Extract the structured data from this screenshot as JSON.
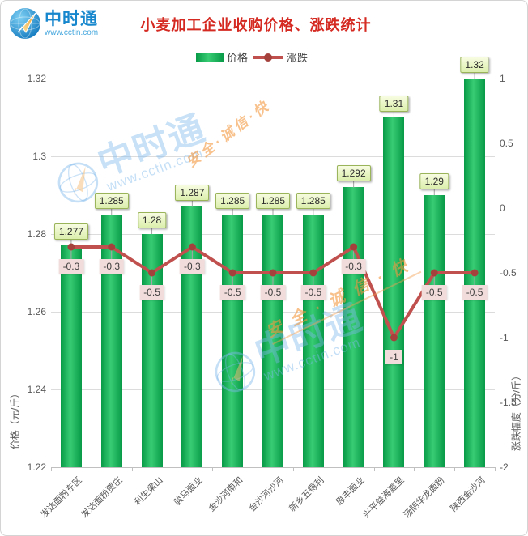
{
  "header": {
    "logo": {
      "brand": "中时通",
      "url": "www.cctin.com"
    },
    "title": "小麦加工企业收购价格、涨跌统计"
  },
  "legend": {
    "items": [
      {
        "label": "价格"
      },
      {
        "label": "涨跌"
      }
    ]
  },
  "watermark": {
    "brand": "中时通",
    "url": "www.cctin.com",
    "slogan": "安全·诚信·快"
  },
  "chart_data": {
    "type": "bar",
    "title": "小麦加工企业收购价格、涨跌统计",
    "categories": [
      "发达面粉东区",
      "发达面粉贾庄",
      "利生梁山",
      "骏马面业",
      "金沙河南和",
      "金沙河沙河",
      "新乡五得利",
      "思丰面业",
      "兴平益海嘉里",
      "汤阴华龙面粉",
      "陕西金沙河"
    ],
    "series": [
      {
        "name": "价格",
        "chart": "bar",
        "axis": "left",
        "values": [
          1.277,
          1.285,
          1.28,
          1.287,
          1.285,
          1.285,
          1.285,
          1.292,
          1.31,
          1.29,
          1.32
        ]
      },
      {
        "name": "涨跌",
        "chart": "line",
        "axis": "right",
        "values": [
          -0.3,
          -0.3,
          -0.5,
          -0.3,
          -0.5,
          -0.5,
          -0.5,
          -0.3,
          -1,
          -0.5,
          -0.5
        ]
      }
    ],
    "left_axis": {
      "label": "价格（元/斤）",
      "min": 1.22,
      "max": 1.32,
      "tick_labels": [
        "1.32",
        "1.3",
        "1.28",
        "1.26",
        "1.24",
        "1.22"
      ],
      "tick_values": [
        1.32,
        1.3,
        1.28,
        1.26,
        1.24,
        1.22
      ]
    },
    "right_axis": {
      "label": "涨跌幅度（分/斤）",
      "min": -2,
      "max": 1,
      "tick_labels": [
        "1",
        "0.5",
        "0",
        "-0.5",
        "-1",
        "-1.5",
        "-2"
      ],
      "tick_values": [
        1,
        0.5,
        0,
        -0.5,
        -1,
        -1.5,
        -2
      ]
    },
    "grid": "horizontal",
    "legend_position": "top",
    "colors": {
      "bar_dark": "#089a47",
      "bar_light": "#38cc74",
      "line": "#c0504d",
      "marker": "#a5413d",
      "value_box_bg": "#e9f6c4",
      "value_box_border": "#9ab45a",
      "change_box_bg": "#f2dcdb",
      "title": "#d42a22"
    }
  }
}
